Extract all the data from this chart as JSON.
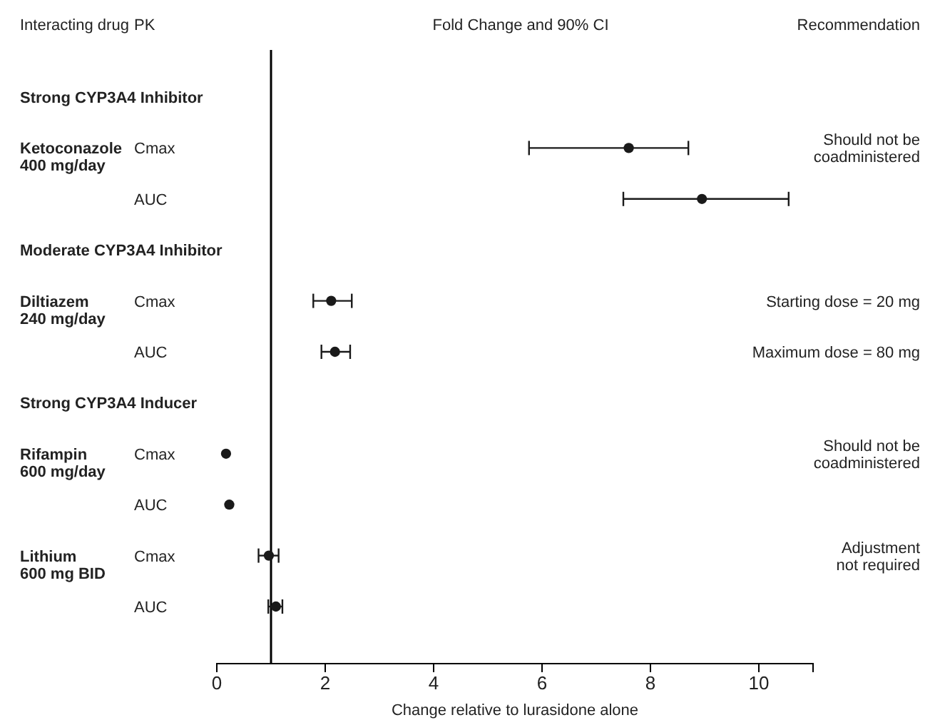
{
  "chart_data": {
    "type": "scatter",
    "orientation": "horizontal",
    "title": "Fold Change and 90% CI",
    "xlabel": "Change relative to lurasidone alone",
    "categories": [
      null,
      "Cmax",
      "AUC",
      null,
      "Cmax",
      "AUC",
      null,
      "Cmax",
      "AUC",
      "Cmax",
      "AUC"
    ],
    "series": [
      {
        "color": "#1a1a1a",
        "values": [
          null,
          7.6,
          8.95,
          null,
          2.11,
          2.18,
          null,
          0.17,
          0.23,
          0.96,
          1.09
        ],
        "errors": [
          null,
          [
            5.76,
            8.7
          ],
          [
            7.5,
            10.55
          ],
          null,
          [
            1.78,
            2.49
          ],
          [
            1.93,
            2.46
          ],
          null,
          null,
          null,
          [
            0.77,
            1.14
          ],
          [
            0.95,
            1.21
          ]
        ]
      }
    ],
    "xlim": [
      0,
      11
    ],
    "xticks": [
      0,
      2,
      4,
      6,
      8,
      10
    ],
    "marker": "circle",
    "grid": false,
    "ref_lines": [
      {
        "axis": "x",
        "value": 1,
        "color": "#000000"
      }
    ],
    "annotations": [
      "Interacting drug",
      "PK",
      "Recommendation",
      "Strong CYP3A4 Inhibitor",
      "Moderate CYP3A4 Inhibitor",
      "Strong CYP3A4 Inducer",
      "Ketoconazole\n400 mg/day",
      "Diltiazem\n240 mg/day",
      "Rifampin\n600 mg/day",
      "Lithium\n600 mg BID",
      "Should not be\ncoadministered",
      "Starting dose = 20 mg",
      "Maximum dose = 80 mg",
      "Should not be\ncoadministered",
      "Adjustment\nnot required"
    ]
  }
}
